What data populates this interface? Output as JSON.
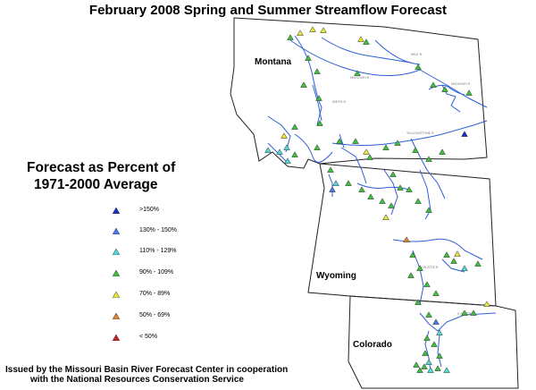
{
  "title": "February 2008 Spring and Summer Streamflow Forecast",
  "state_labels": {
    "montana": "Montana",
    "wyoming": "Wyoming",
    "colorado": "Colorado"
  },
  "legend": {
    "title_line1": "Forecast as Percent of",
    "title_line2": "1971-2000 Average",
    "items": [
      {
        "label": ">150%",
        "color": "#1c2fb8"
      },
      {
        "label": "130% - 150%",
        "color": "#4a78e8"
      },
      {
        "label": "110% - 129%",
        "color": "#53d8d8"
      },
      {
        "label": "90% - 109%",
        "color": "#3fbf3f"
      },
      {
        "label": "70% - 89%",
        "color": "#e8e83a"
      },
      {
        "label": "50% - 69%",
        "color": "#e0822e"
      },
      {
        "label": "< 50%",
        "color": "#c0262e"
      }
    ]
  },
  "footer": {
    "line1": "Issued by the Missouri Basin River Forecast Center in cooperation",
    "line2": "with the National Resources Conservation Service"
  },
  "forecast_points": {
    "gt150": 1,
    "130_150": 2,
    "110_129": 11,
    "90_109": 54,
    "70_89": 11,
    "50_69": 1,
    "lt50": 0
  },
  "colors": {
    "boundary": "#222222",
    "river": "#2f5fd6"
  }
}
